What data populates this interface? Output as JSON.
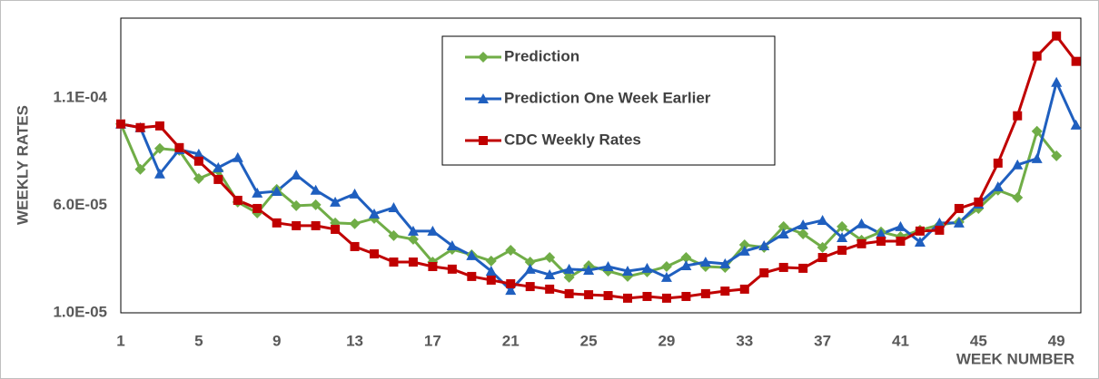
{
  "chart_data": {
    "type": "line",
    "y_label": "WEEKLY RATES",
    "x_label": "WEEK NUMBER",
    "x": [
      1,
      2,
      3,
      4,
      5,
      6,
      7,
      8,
      9,
      10,
      11,
      12,
      13,
      14,
      15,
      16,
      17,
      18,
      19,
      20,
      21,
      22,
      23,
      24,
      25,
      26,
      27,
      28,
      29,
      30,
      31,
      32,
      33,
      34,
      35,
      36,
      37,
      38,
      39,
      40,
      41,
      42,
      43,
      44,
      45,
      46,
      47,
      48,
      49,
      50
    ],
    "xlim": [
      1,
      50.25
    ],
    "xticks": [
      1,
      5,
      9,
      13,
      17,
      21,
      25,
      29,
      33,
      37,
      41,
      45,
      49
    ],
    "ylim": [
      1e-05,
      0.000147
    ],
    "yticks": [
      {
        "value": 1e-05,
        "label": "1.0E-05"
      },
      {
        "value": 6e-05,
        "label": "6.0E-05"
      },
      {
        "value": 0.00011,
        "label": "1.1E-04"
      }
    ],
    "series": [
      {
        "name": "Prediction",
        "color": "#70ad47",
        "marker": "diamond",
        "values": [
          9.78e-05,
          7.67e-05,
          8.64e-05,
          8.55e-05,
          7.24e-05,
          7.62e-05,
          6.15e-05,
          5.64e-05,
          6.74e-05,
          5.98e-05,
          6.02e-05,
          5.18e-05,
          5.14e-05,
          5.39e-05,
          4.59e-05,
          4.42e-05,
          3.36e-05,
          3.95e-05,
          3.7e-05,
          3.41e-05,
          3.91e-05,
          3.36e-05,
          3.57e-05,
          2.65e-05,
          3.19e-05,
          2.94e-05,
          2.69e-05,
          2.9e-05,
          3.15e-05,
          3.57e-05,
          3.15e-05,
          3.11e-05,
          4.16e-05,
          4.04e-05,
          5.01e-05,
          4.67e-05,
          4.04e-05,
          5.01e-05,
          4.38e-05,
          4.76e-05,
          4.54e-05,
          4.84e-05,
          5.09e-05,
          5.22e-05,
          5.85e-05,
          6.7e-05,
          6.36e-05,
          9.44e-05,
          8.3e-05,
          null
        ]
      },
      {
        "name": "Prediction One Week Earlier",
        "color": "#1f5fbf",
        "marker": "triangle",
        "values": [
          9.78e-05,
          9.61e-05,
          7.46e-05,
          8.59e-05,
          8.38e-05,
          7.75e-05,
          8.22e-05,
          6.57e-05,
          6.65e-05,
          7.41e-05,
          6.7e-05,
          6.15e-05,
          6.53e-05,
          5.6e-05,
          5.89e-05,
          4.8e-05,
          4.8e-05,
          4.12e-05,
          3.66e-05,
          2.94e-05,
          2.05e-05,
          3.03e-05,
          2.77e-05,
          3.03e-05,
          2.98e-05,
          3.15e-05,
          2.94e-05,
          3.07e-05,
          2.65e-05,
          3.19e-05,
          3.36e-05,
          3.28e-05,
          3.87e-05,
          4.12e-05,
          4.67e-05,
          5.09e-05,
          5.3e-05,
          4.5e-05,
          5.14e-05,
          4.67e-05,
          5.01e-05,
          4.29e-05,
          5.18e-05,
          5.18e-05,
          6.06e-05,
          6.86e-05,
          7.88e-05,
          8.17e-05,
          0.0001172,
          9.73e-05
        ]
      },
      {
        "name": "CDC Weekly Rates",
        "color": "#c00000",
        "marker": "square",
        "values": [
          9.78e-05,
          9.61e-05,
          9.69e-05,
          8.68e-05,
          8.05e-05,
          7.2e-05,
          6.23e-05,
          5.85e-05,
          5.18e-05,
          5.05e-05,
          5.05e-05,
          4.88e-05,
          4.08e-05,
          3.74e-05,
          3.36e-05,
          3.36e-05,
          3.15e-05,
          3.03e-05,
          2.69e-05,
          2.52e-05,
          2.35e-05,
          2.22e-05,
          2.1e-05,
          1.89e-05,
          1.84e-05,
          1.8e-05,
          1.68e-05,
          1.76e-05,
          1.68e-05,
          1.76e-05,
          1.89e-05,
          2.01e-05,
          2.1e-05,
          2.86e-05,
          3.11e-05,
          3.07e-05,
          3.57e-05,
          3.91e-05,
          4.21e-05,
          4.33e-05,
          4.33e-05,
          4.8e-05,
          4.84e-05,
          5.85e-05,
          6.15e-05,
          7.96e-05,
          0.0001016,
          0.0001294,
          0.0001387,
          0.0001269
        ]
      }
    ]
  }
}
